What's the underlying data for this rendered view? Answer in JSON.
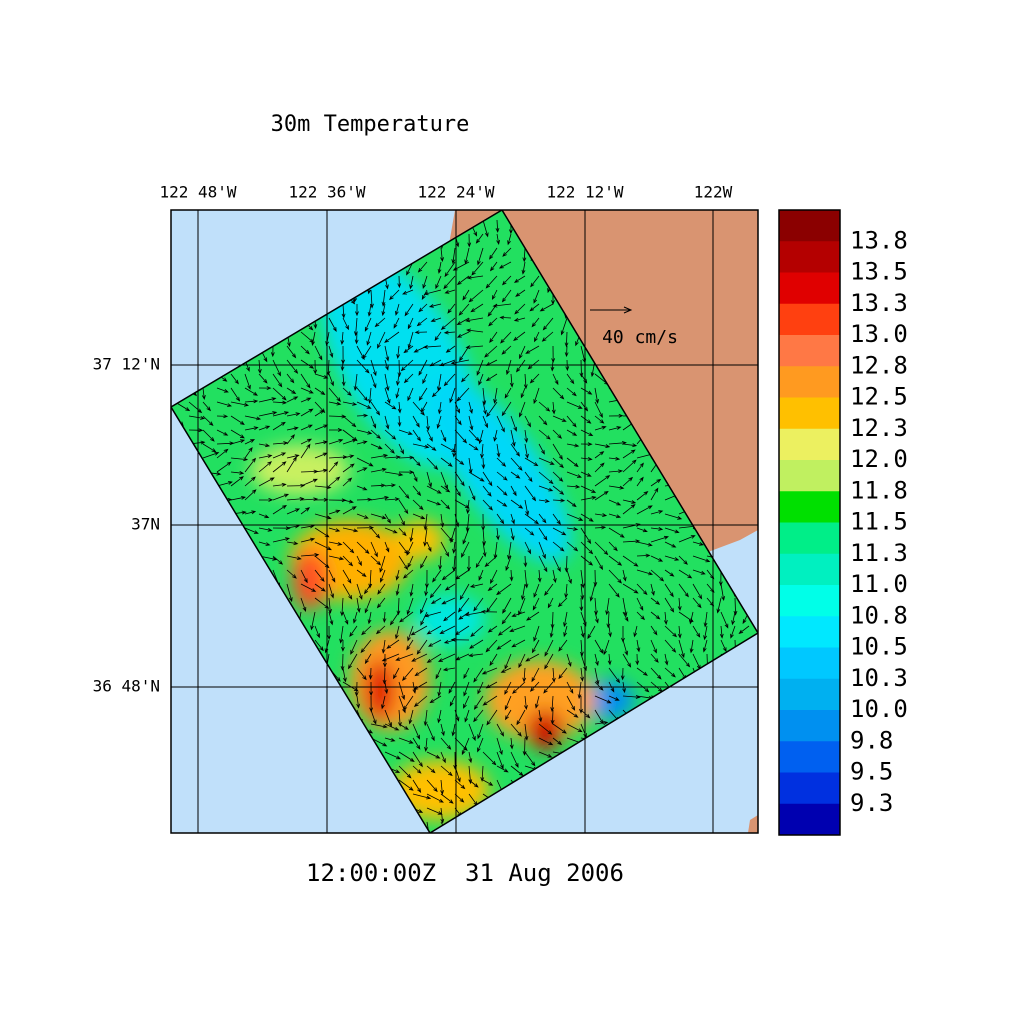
{
  "title": "30m Temperature",
  "x_axis": {
    "labels": [
      "122 48'W",
      "122 36'W",
      "122 24'W",
      "122 12'W",
      "122W"
    ]
  },
  "y_axis": {
    "labels": [
      "37 12'N",
      "37N",
      "36 48'N"
    ]
  },
  "vector_scale": "40 cm/s",
  "timestamp": "12:00:00Z  31 Aug 2006",
  "colorbar": {
    "labels": [
      "13.8",
      "13.5",
      "13.3",
      "13.0",
      "12.8",
      "12.5",
      "12.3",
      "12.0",
      "11.8",
      "11.5",
      "11.3",
      "11.0",
      "10.8",
      "10.5",
      "10.3",
      "10.0",
      "9.8",
      "9.5",
      "9.3"
    ],
    "colors": [
      "#8b0000",
      "#b40000",
      "#e00000",
      "#ff4010",
      "#ff7845",
      "#ff9a20",
      "#ffc000",
      "#ecf060",
      "#c0f060",
      "#00e000",
      "#00ee88",
      "#00f0c0",
      "#00ffe8",
      "#00e8ff",
      "#00c8ff",
      "#00b0f0",
      "#0090f0",
      "#0060f0",
      "#0030e0",
      "#0000b0"
    ]
  }
}
